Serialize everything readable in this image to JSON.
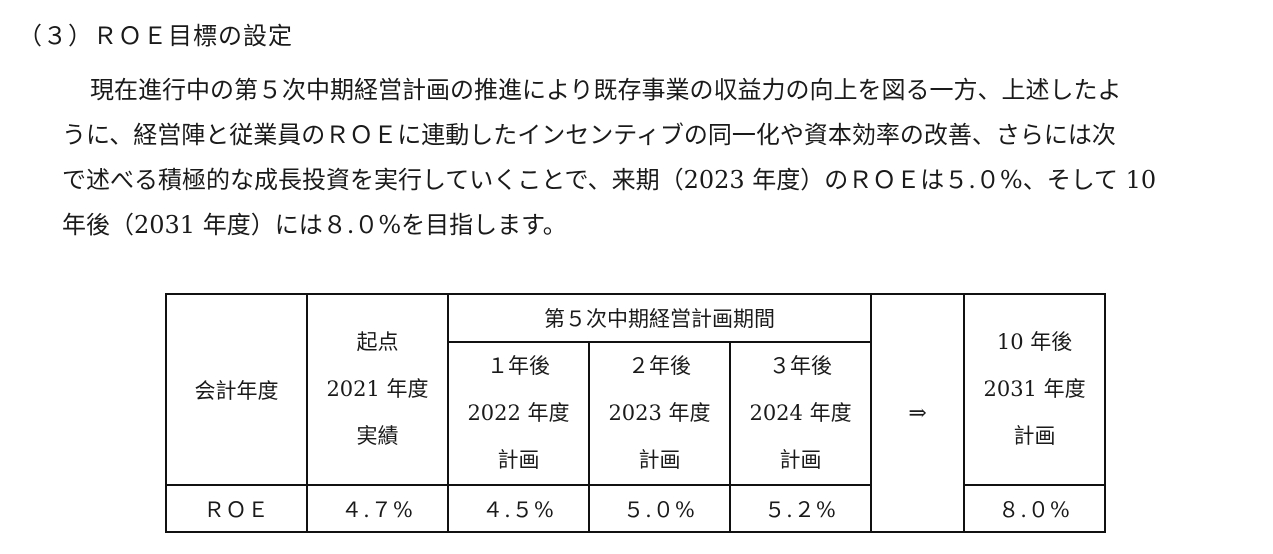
{
  "heading": "（３）ＲＯＥ目標の設定",
  "paragraph_lines": [
    "現在進行中の第５次中期経営計画の推進により既存事業の収益力の向上を図る一方、上述したよ",
    "うに、経営陣と従業員のＲＯＥに連動したインセンティブの同一化や資本効率の改善、さらには次",
    "で述べる積極的な成長投資を実行していくことで、来期（2023 年度）のＲＯＥは５.０%、そして 10",
    "年後（2031 年度）には８.０%を目指します。"
  ],
  "table": {
    "row_header": "会計年度",
    "plan_period_header": "第５次中期経営計画期間",
    "arrow": "⇒",
    "columns": [
      {
        "offset": "起点",
        "year": "2021 年度",
        "type": "実績",
        "roe": "４.７%"
      },
      {
        "offset": "１年後",
        "year": "2022 年度",
        "type": "計画",
        "roe": "４.５%"
      },
      {
        "offset": "２年後",
        "year": "2023 年度",
        "type": "計画",
        "roe": "５.０%"
      },
      {
        "offset": "３年後",
        "year": "2024 年度",
        "type": "計画",
        "roe": "５.２%"
      }
    ],
    "target": {
      "offset": "10 年後",
      "year": "2031 年度",
      "type": "計画",
      "roe": "８.０%"
    },
    "metric_label": "ＲＯＥ"
  }
}
